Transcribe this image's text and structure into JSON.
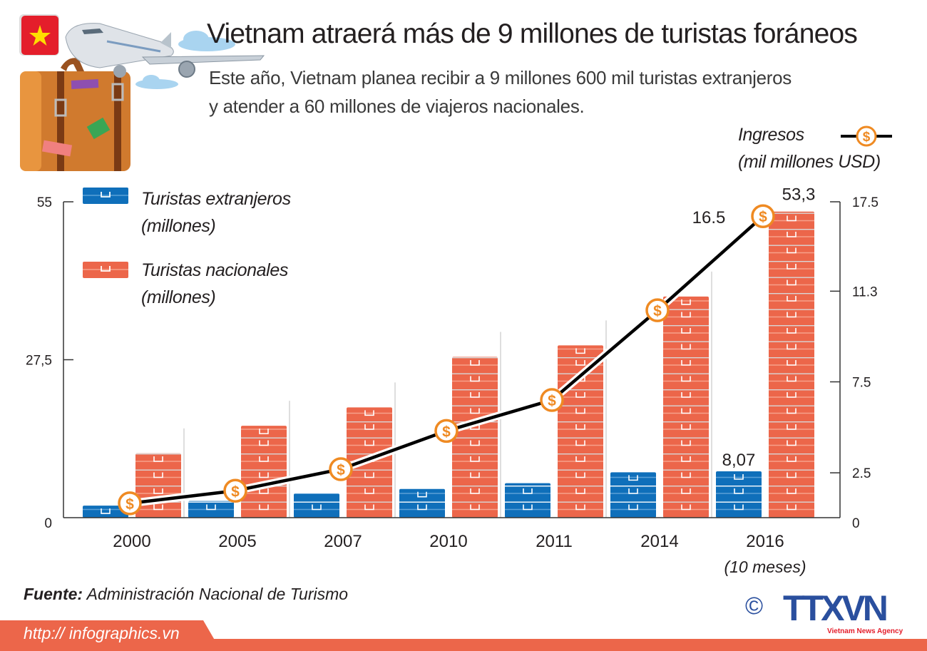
{
  "header": {
    "title": "Vietnam atraerá más de 9 millones de turistas foráneos",
    "subtitle_line1": "Este año, Vietnam planea recibir a 9 millones 600 mil turistas extranjeros",
    "subtitle_line2": "y atender a 60 millones de viajeros nacionales."
  },
  "chart_data": {
    "type": "bar",
    "categories": [
      "2000",
      "2005",
      "2007",
      "2010",
      "2011",
      "2014",
      "2016"
    ],
    "category_note": "(10 meses)",
    "series": [
      {
        "name": "Turistas extranjeros",
        "unit": "(millones)",
        "axis": "left",
        "color": "#0f6fba",
        "values": [
          2.1,
          2.9,
          4.2,
          5.0,
          6.0,
          7.9,
          8.07
        ]
      },
      {
        "name": "Turistas nacionales",
        "unit": "(millones)",
        "axis": "left",
        "color": "#ec664a",
        "values": [
          11.2,
          16.0,
          19.2,
          28.0,
          30.0,
          38.5,
          53.3
        ]
      },
      {
        "name": "Ingresos",
        "unit": "(mil millones USD)",
        "axis": "right",
        "type": "line",
        "color": "#000000",
        "marker_color": "#ef8a22",
        "values": [
          0.8,
          1.5,
          2.7,
          4.8,
          6.5,
          10.5,
          16.5
        ]
      }
    ],
    "left_axis": {
      "ticks": [
        "0",
        "27,5",
        "55"
      ],
      "ylim": [
        0,
        55
      ]
    },
    "right_axis": {
      "ticks": [
        "0",
        "2.5",
        "7.5",
        "11.3",
        "17.5"
      ],
      "ylim": [
        0,
        17.5
      ]
    },
    "data_labels": {
      "foreign_2016": "8,07",
      "domestic_2016": "53,3",
      "revenue_2016": "16.5"
    },
    "legend_placement": "top-left",
    "grid": false
  },
  "legend": {
    "foreign_line1": "Turistas extranjeros",
    "foreign_line2": "(millones)",
    "domestic_line1": "Turistas nacionales",
    "domestic_line2": "(millones)",
    "revenue_line1": "Ingresos",
    "revenue_line2": "(mil millones USD)"
  },
  "source": {
    "label": "Fuente:",
    "text": "Administración Nacional de Turismo"
  },
  "footer": {
    "url": "http:// infographics.vn",
    "logo_text": "TTXVN",
    "logo_sub": "Vietnam News Agency",
    "copyright": "©"
  }
}
